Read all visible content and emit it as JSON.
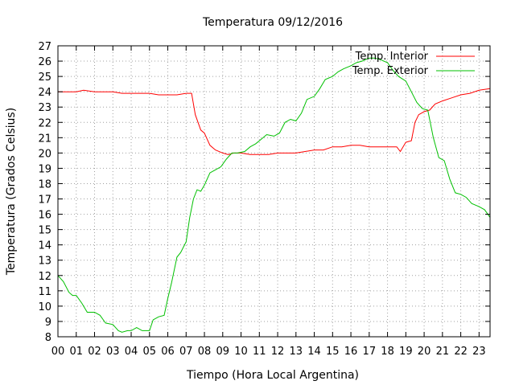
{
  "chart_data": {
    "type": "line",
    "title": "Temperatura 09/12/2016",
    "xlabel": "Tiempo (Hora Local Argentina)",
    "ylabel": "Temperatura (Grados Celsius)",
    "x_tick_labels": [
      "00",
      "01",
      "02",
      "03",
      "04",
      "05",
      "06",
      "07",
      "08",
      "09",
      "10",
      "11",
      "12",
      "13",
      "14",
      "15",
      "16",
      "17",
      "18",
      "19",
      "20",
      "21",
      "22",
      "23"
    ],
    "y_ticks": [
      8,
      9,
      10,
      11,
      12,
      13,
      14,
      15,
      16,
      17,
      18,
      19,
      20,
      21,
      22,
      23,
      24,
      25,
      26,
      27
    ],
    "xlim": [
      0,
      23.6
    ],
    "ylim": [
      8,
      27
    ],
    "grid": true,
    "legend_position": "top-right",
    "series": [
      {
        "name": "Temp. Interior",
        "color": "#ff0000",
        "x": [
          0,
          1.0,
          1.4,
          2.0,
          3.0,
          3.5,
          4.0,
          5.0,
          5.5,
          6.0,
          6.5,
          7.0,
          7.3,
          7.5,
          7.8,
          8.0,
          8.3,
          8.6,
          9.0,
          9.3,
          9.6,
          10.0,
          10.5,
          11.0,
          11.5,
          12.0,
          12.5,
          13.0,
          13.5,
          14.0,
          14.5,
          15.0,
          15.5,
          16.0,
          16.5,
          17.0,
          17.5,
          18.0,
          18.5,
          18.7,
          19.0,
          19.3,
          19.5,
          19.7,
          20.0,
          20.3,
          20.6,
          21.0,
          21.5,
          22.0,
          22.5,
          23.0,
          23.6
        ],
        "y": [
          24.0,
          24.0,
          24.1,
          24.0,
          24.0,
          23.9,
          23.9,
          23.9,
          23.8,
          23.8,
          23.8,
          23.9,
          23.9,
          22.5,
          21.5,
          21.3,
          20.5,
          20.2,
          20.0,
          19.9,
          20.0,
          20.0,
          19.9,
          19.9,
          19.9,
          20.0,
          20.0,
          20.0,
          20.1,
          20.2,
          20.2,
          20.4,
          20.4,
          20.5,
          20.5,
          20.4,
          20.4,
          20.4,
          20.4,
          20.1,
          20.7,
          20.8,
          22.0,
          22.5,
          22.7,
          22.8,
          23.2,
          23.4,
          23.6,
          23.8,
          23.9,
          24.1,
          24.2
        ]
      },
      {
        "name": "Temp. Exterior",
        "color": "#00c000",
        "x": [
          0,
          0.3,
          0.6,
          0.8,
          1.0,
          1.3,
          1.6,
          2.0,
          2.3,
          2.6,
          3.0,
          3.3,
          3.5,
          3.8,
          4.0,
          4.3,
          4.6,
          5.0,
          5.2,
          5.5,
          5.8,
          6.0,
          6.2,
          6.5,
          6.7,
          7.0,
          7.2,
          7.4,
          7.6,
          7.8,
          8.0,
          8.3,
          8.6,
          8.9,
          9.2,
          9.5,
          9.8,
          10.2,
          10.5,
          10.8,
          11.1,
          11.4,
          11.8,
          12.1,
          12.4,
          12.7,
          13.0,
          13.3,
          13.6,
          14.0,
          14.3,
          14.6,
          15.0,
          15.3,
          15.6,
          16.0,
          16.3,
          16.6,
          17.0,
          17.3,
          17.6,
          18.0,
          18.3,
          18.6,
          19.0,
          19.3,
          19.6,
          19.9,
          20.2,
          20.5,
          20.8,
          21.1,
          21.4,
          21.7,
          22.0,
          22.3,
          22.6,
          23.0,
          23.3,
          23.6
        ],
        "y": [
          12.0,
          11.6,
          10.9,
          10.7,
          10.7,
          10.2,
          9.6,
          9.6,
          9.4,
          8.9,
          8.8,
          8.4,
          8.3,
          8.4,
          8.4,
          8.6,
          8.4,
          8.4,
          9.1,
          9.3,
          9.4,
          10.5,
          11.5,
          13.2,
          13.5,
          14.2,
          15.8,
          17.0,
          17.6,
          17.5,
          17.9,
          18.7,
          18.9,
          19.1,
          19.6,
          20.0,
          20.0,
          20.1,
          20.4,
          20.6,
          20.9,
          21.2,
          21.1,
          21.3,
          22.0,
          22.2,
          22.1,
          22.6,
          23.5,
          23.7,
          24.2,
          24.8,
          25.0,
          25.3,
          25.5,
          25.7,
          25.9,
          26.0,
          26.2,
          26.2,
          26.1,
          25.9,
          25.4,
          25.0,
          24.7,
          24.0,
          23.3,
          22.9,
          22.8,
          21.0,
          19.7,
          19.5,
          18.3,
          17.4,
          17.3,
          17.1,
          16.7,
          16.5,
          16.3,
          15.8
        ]
      }
    ]
  }
}
